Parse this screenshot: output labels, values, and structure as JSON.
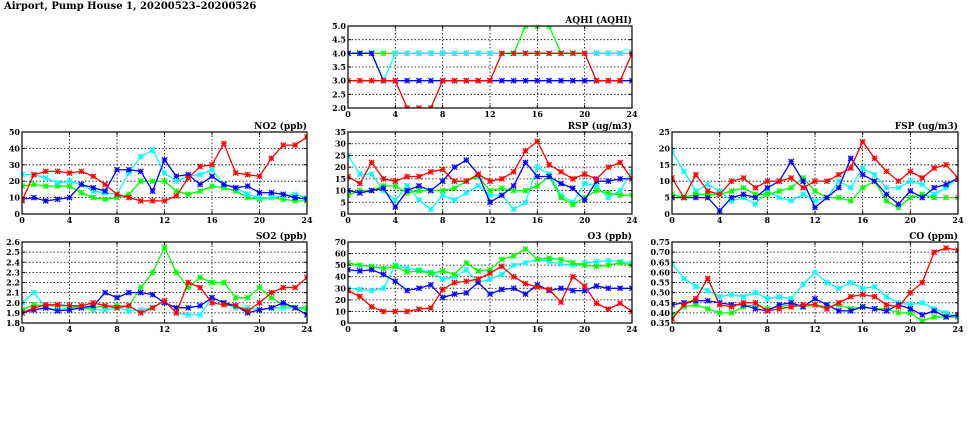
{
  "page": {
    "title": "Airport, Pump House 1, 20200523–20200526"
  },
  "colors": {
    "day1": "#ff0000",
    "day2": "#0000ff",
    "day3": "#00ff00",
    "day4": "#00ffff"
  },
  "chart_data": [
    {
      "id": "aqhi",
      "type": "line",
      "title": "AQHI (AQHI)",
      "xlim": [
        0,
        24
      ],
      "ylim": [
        2.0,
        5.0
      ],
      "xticks": [
        0,
        4,
        8,
        12,
        16,
        20,
        24
      ],
      "yticks": [
        2.0,
        2.5,
        3.0,
        3.5,
        4.0,
        4.5,
        5.0
      ],
      "ydecimals": 1,
      "grid": true,
      "series": [
        {
          "color": "#00ff00",
          "values": [
            4,
            4,
            4,
            4,
            4,
            4,
            4,
            4,
            4,
            4,
            4,
            4,
            4,
            4,
            4,
            5,
            5,
            5,
            4,
            4,
            4,
            4,
            4,
            4,
            4
          ]
        },
        {
          "color": "#00ffff",
          "values": [
            4,
            4,
            4,
            3,
            4,
            4,
            4,
            4,
            4,
            4,
            4,
            4,
            4,
            4,
            4,
            4,
            4,
            4,
            4,
            4,
            4,
            4,
            4,
            4,
            4
          ]
        },
        {
          "color": "#0000ff",
          "values": [
            4,
            4,
            4,
            3,
            3,
            3,
            3,
            3,
            3,
            3,
            3,
            3,
            3,
            3,
            3,
            3,
            3,
            3,
            3,
            3,
            3,
            3,
            3,
            3,
            3
          ]
        },
        {
          "color": "#ff0000",
          "values": [
            3,
            3,
            3,
            3,
            3,
            2,
            2,
            2,
            3,
            3,
            3,
            3,
            3,
            4,
            4,
            4,
            4,
            4,
            4,
            4,
            4,
            3,
            3,
            3,
            4
          ]
        }
      ]
    },
    {
      "id": "no2",
      "type": "line",
      "title": "NO2 (ppb)",
      "xlim": [
        0,
        24
      ],
      "ylim": [
        0,
        50
      ],
      "xticks": [
        0,
        4,
        8,
        12,
        16,
        20,
        24
      ],
      "yticks": [
        0,
        10,
        20,
        30,
        40,
        50
      ],
      "ydecimals": 0,
      "grid": true,
      "series": [
        {
          "color": "#00ff00",
          "values": [
            17,
            18,
            17,
            17,
            17,
            13,
            10,
            9,
            10,
            12,
            20,
            20,
            20,
            14,
            12,
            14,
            17,
            16,
            14,
            10,
            9,
            10,
            9,
            8,
            8
          ]
        },
        {
          "color": "#00ffff",
          "values": [
            24,
            24,
            22,
            19,
            20,
            18,
            14,
            13,
            12,
            25,
            35,
            39,
            25,
            20,
            23,
            24,
            27,
            18,
            16,
            12,
            10,
            10,
            11,
            12,
            10
          ]
        },
        {
          "color": "#0000ff",
          "values": [
            9,
            10,
            8,
            9,
            10,
            18,
            16,
            14,
            27,
            27,
            26,
            14,
            33,
            23,
            24,
            18,
            23,
            18,
            16,
            17,
            13,
            13,
            12,
            10,
            9
          ]
        },
        {
          "color": "#ff0000",
          "values": [
            8,
            24,
            26,
            26,
            25,
            26,
            23,
            18,
            12,
            10,
            8,
            8,
            8,
            11,
            22,
            29,
            30,
            43,
            25,
            24,
            23,
            34,
            42,
            42,
            47
          ]
        }
      ]
    },
    {
      "id": "rsp",
      "type": "line",
      "title": "RSP (ug/m3)",
      "xlim": [
        0,
        24
      ],
      "ylim": [
        0,
        35
      ],
      "xticks": [
        0,
        4,
        8,
        12,
        16,
        20,
        24
      ],
      "yticks": [
        0,
        5,
        10,
        15,
        20,
        25,
        30,
        35
      ],
      "ydecimals": 0,
      "grid": true,
      "series": [
        {
          "color": "#00ffff",
          "values": [
            25,
            17,
            17,
            10,
            6,
            12,
            6,
            2,
            8,
            6,
            9,
            12,
            8,
            8,
            2,
            5,
            20,
            17,
            8,
            5,
            13,
            12,
            7,
            10,
            18
          ]
        },
        {
          "color": "#00ff00",
          "values": [
            8,
            10,
            10,
            12,
            12,
            9,
            10,
            10,
            10,
            11,
            14,
            16,
            10,
            11,
            10,
            10,
            12,
            16,
            7,
            4,
            7,
            10,
            9,
            8,
            8
          ]
        },
        {
          "color": "#0000ff",
          "values": [
            10,
            9,
            10,
            11,
            3,
            10,
            12,
            10,
            14,
            20,
            23,
            17,
            5,
            8,
            12,
            22,
            16,
            16,
            13,
            11,
            6,
            14,
            14,
            15,
            15
          ]
        },
        {
          "color": "#ff0000",
          "values": [
            16,
            13,
            22,
            15,
            14,
            16,
            16,
            18,
            19,
            14,
            14,
            17,
            14,
            15,
            18,
            27,
            31,
            21,
            18,
            15,
            17,
            15,
            20,
            22,
            15
          ]
        }
      ]
    },
    {
      "id": "fsp",
      "type": "line",
      "title": "FSP (ug/m3)",
      "xlim": [
        0,
        24
      ],
      "ylim": [
        0,
        25
      ],
      "xticks": [
        0,
        4,
        8,
        12,
        16,
        20,
        24
      ],
      "yticks": [
        0,
        5,
        10,
        15,
        20,
        25
      ],
      "ydecimals": 0,
      "grid": true,
      "series": [
        {
          "color": "#00ffff",
          "values": [
            19,
            13,
            7,
            9,
            7,
            4,
            5,
            3,
            7,
            5,
            4,
            6,
            4,
            5,
            10,
            8,
            14,
            12,
            8,
            8,
            10,
            9,
            6,
            8,
            11
          ]
        },
        {
          "color": "#00ff00",
          "values": [
            6,
            5,
            6,
            6,
            6,
            7,
            8,
            6,
            6,
            7,
            8,
            11,
            7,
            5,
            5,
            4,
            8,
            10,
            4,
            2,
            5,
            6,
            5,
            5,
            5
          ]
        },
        {
          "color": "#0000ff",
          "values": [
            5,
            5,
            5,
            5,
            1,
            5,
            6,
            5,
            8,
            10,
            16,
            10,
            2,
            5,
            8,
            17,
            12,
            10,
            6,
            3,
            7,
            5,
            8,
            9,
            11
          ]
        },
        {
          "color": "#ff0000",
          "values": [
            11,
            5,
            12,
            7,
            6,
            10,
            11,
            8,
            10,
            10,
            11,
            8,
            10,
            10,
            12,
            14,
            22,
            17,
            13,
            10,
            13,
            11,
            14,
            15,
            11
          ]
        }
      ]
    },
    {
      "id": "so2",
      "type": "line",
      "title": "SO2 (ppb)",
      "xlim": [
        0,
        24
      ],
      "ylim": [
        1.8,
        2.6
      ],
      "xticks": [
        0,
        4,
        8,
        12,
        16,
        20,
        24
      ],
      "yticks": [
        1.8,
        1.9,
        2.0,
        2.1,
        2.2,
        2.3,
        2.4,
        2.5,
        2.6
      ],
      "ydecimals": 1,
      "grid": true,
      "series": [
        {
          "color": "#00ffff",
          "values": [
            2.0,
            2.1,
            1.95,
            1.93,
            1.95,
            1.95,
            1.93,
            1.93,
            1.95,
            1.92,
            1.93,
            1.95,
            2.02,
            1.9,
            1.88,
            1.88,
            2.05,
            2.0,
            1.95,
            1.95,
            1.93,
            1.95,
            1.95,
            1.95,
            1.93
          ]
        },
        {
          "color": "#00ff00",
          "values": [
            1.93,
            1.98,
            1.97,
            1.97,
            1.97,
            1.95,
            1.95,
            1.97,
            1.97,
            1.97,
            2.15,
            2.3,
            2.55,
            2.3,
            2.15,
            2.25,
            2.2,
            2.2,
            2.05,
            2.05,
            2.15,
            2.05,
            1.98,
            1.95,
            1.95
          ]
        },
        {
          "color": "#0000ff",
          "values": [
            1.9,
            1.93,
            1.95,
            1.92,
            1.93,
            1.95,
            1.97,
            2.1,
            2.05,
            2.1,
            2.1,
            2.08,
            2.0,
            1.95,
            1.95,
            1.97,
            2.05,
            2.0,
            1.97,
            1.9,
            1.93,
            1.95,
            2.0,
            1.95,
            1.88
          ]
        },
        {
          "color": "#ff0000",
          "values": [
            1.9,
            1.95,
            1.98,
            1.98,
            1.97,
            1.97,
            2.0,
            1.97,
            1.95,
            1.97,
            1.9,
            1.95,
            2.02,
            1.9,
            2.2,
            2.15,
            2.0,
            1.98,
            1.97,
            1.92,
            2.0,
            2.1,
            2.15,
            2.15,
            2.25
          ]
        }
      ]
    },
    {
      "id": "o3",
      "type": "line",
      "title": "O3 (ppb)",
      "xlim": [
        0,
        24
      ],
      "ylim": [
        0,
        70
      ],
      "xticks": [
        0,
        4,
        8,
        12,
        16,
        20,
        24
      ],
      "yticks": [
        0,
        10,
        20,
        30,
        40,
        50,
        60,
        70
      ],
      "ydecimals": 0,
      "grid": true,
      "series": [
        {
          "color": "#00ffff",
          "values": [
            30,
            29,
            28,
            30,
            50,
            47,
            46,
            44,
            38,
            40,
            46,
            35,
            38,
            42,
            50,
            52,
            55,
            53,
            51,
            50,
            52,
            53,
            54,
            53,
            52
          ]
        },
        {
          "color": "#00ff00",
          "values": [
            52,
            50,
            49,
            47,
            49,
            44,
            45,
            43,
            45,
            42,
            52,
            45,
            46,
            55,
            58,
            64,
            55,
            56,
            55,
            52,
            50,
            49,
            50,
            52,
            50
          ]
        },
        {
          "color": "#0000ff",
          "values": [
            46,
            45,
            46,
            42,
            36,
            28,
            30,
            33,
            22,
            25,
            26,
            35,
            25,
            29,
            30,
            25,
            33,
            28,
            30,
            28,
            28,
            32,
            30,
            30,
            30
          ]
        },
        {
          "color": "#ff0000",
          "values": [
            28,
            23,
            14,
            10,
            10,
            10,
            12,
            13,
            29,
            35,
            36,
            38,
            43,
            49,
            40,
            34,
            31,
            29,
            18,
            40,
            32,
            17,
            12,
            17,
            10
          ]
        }
      ]
    },
    {
      "id": "co",
      "type": "line",
      "title": "CO (ppm)",
      "xlim": [
        0,
        24
      ],
      "ylim": [
        0.35,
        0.75
      ],
      "xticks": [
        0,
        4,
        8,
        12,
        16,
        20,
        24
      ],
      "yticks": [
        0.35,
        0.4,
        0.45,
        0.5,
        0.55,
        0.6,
        0.65,
        0.7,
        0.75
      ],
      "ydecimals": 2,
      "grid": true,
      "series": [
        {
          "color": "#00ffff",
          "values": [
            0.64,
            0.57,
            0.53,
            0.51,
            0.48,
            0.49,
            0.48,
            0.5,
            0.47,
            0.48,
            0.47,
            0.54,
            0.6,
            0.55,
            0.52,
            0.55,
            0.52,
            0.53,
            0.48,
            0.45,
            0.44,
            0.45,
            0.42,
            0.4,
            0.38
          ]
        },
        {
          "color": "#00ff00",
          "values": [
            0.39,
            0.43,
            0.44,
            0.42,
            0.4,
            0.4,
            0.43,
            0.44,
            0.42,
            0.43,
            0.44,
            0.43,
            0.44,
            0.43,
            0.44,
            0.42,
            0.43,
            0.42,
            0.42,
            0.4,
            0.4,
            0.36,
            0.38,
            0.38,
            0.38
          ]
        },
        {
          "color": "#0000ff",
          "values": [
            0.44,
            0.45,
            0.46,
            0.46,
            0.45,
            0.44,
            0.44,
            0.42,
            0.41,
            0.44,
            0.45,
            0.43,
            0.47,
            0.44,
            0.41,
            0.41,
            0.43,
            0.42,
            0.41,
            0.44,
            0.42,
            0.39,
            0.41,
            0.38,
            0.39
          ]
        },
        {
          "color": "#ff0000",
          "values": [
            0.37,
            0.44,
            0.47,
            0.57,
            0.44,
            0.43,
            0.45,
            0.45,
            0.41,
            0.42,
            0.43,
            0.44,
            0.44,
            0.42,
            0.45,
            0.48,
            0.49,
            0.48,
            0.44,
            0.43,
            0.5,
            0.55,
            0.7,
            0.72,
            0.71
          ]
        }
      ]
    }
  ]
}
